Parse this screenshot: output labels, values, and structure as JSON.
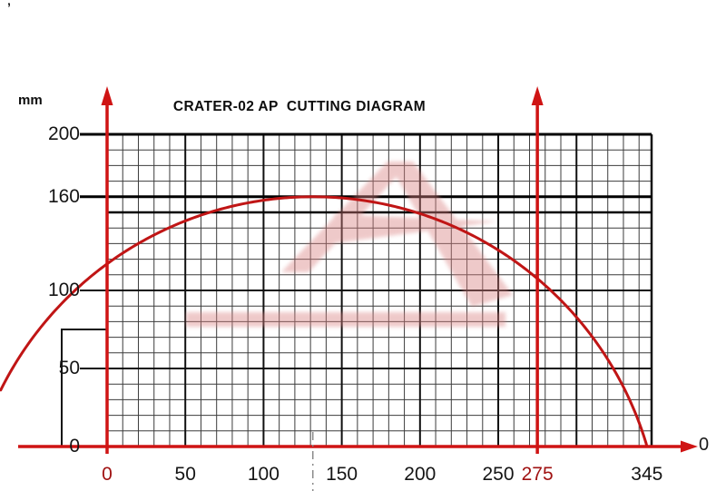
{
  "page": {
    "stray_mark": "’"
  },
  "chart": {
    "title": "CRATER-02 AP  CUTTING DIAGRAM",
    "unit_label": "mm",
    "x_axis_end_label": "0"
  },
  "chart_data": {
    "type": "line",
    "title": "CRATER-02 AP CUTTING DIAGRAM",
    "unit": "mm",
    "x_range": [
      0,
      348
    ],
    "y_range": [
      0,
      200
    ],
    "x_ticks": [
      0,
      50,
      100,
      150,
      200,
      250,
      275,
      345
    ],
    "x_tick_labels": [
      "0",
      "50",
      "100",
      "150",
      "200",
      "250",
      "275",
      "345"
    ],
    "highlighted_x_ticks": [
      "0",
      "275"
    ],
    "y_ticks": [
      0,
      50,
      100,
      160,
      200
    ],
    "y_tick_labels": [
      "0",
      "50",
      "100",
      "160",
      "200"
    ],
    "grid": {
      "minor_step": 10,
      "major_step": 50,
      "on": true
    },
    "cutting_arc": {
      "description": "saw blade cutting capacity arc",
      "center_x": 131.5,
      "center_y": -62.6,
      "radius": 222.6,
      "x_min": -68,
      "x_max": 345
    },
    "horizontal_limit_lines": [
      150,
      160
    ],
    "vertical_arrow_marks": [
      0,
      275
    ],
    "blade_center_line_x": 131.5,
    "max_cut_width": 345,
    "max_cut_height": 160,
    "machine_outline": {
      "x1": -29,
      "y1": 0,
      "x2": 0,
      "y2": 75
    },
    "colors": {
      "curve": "#c01515",
      "axis": "#cf1414",
      "grid_minor": "#3c3c3c",
      "grid_major": "#101010",
      "label": "#151515",
      "highlight_label": "#a01212",
      "watermark": "#d98080",
      "centerline": "#8a8a8a"
    }
  }
}
